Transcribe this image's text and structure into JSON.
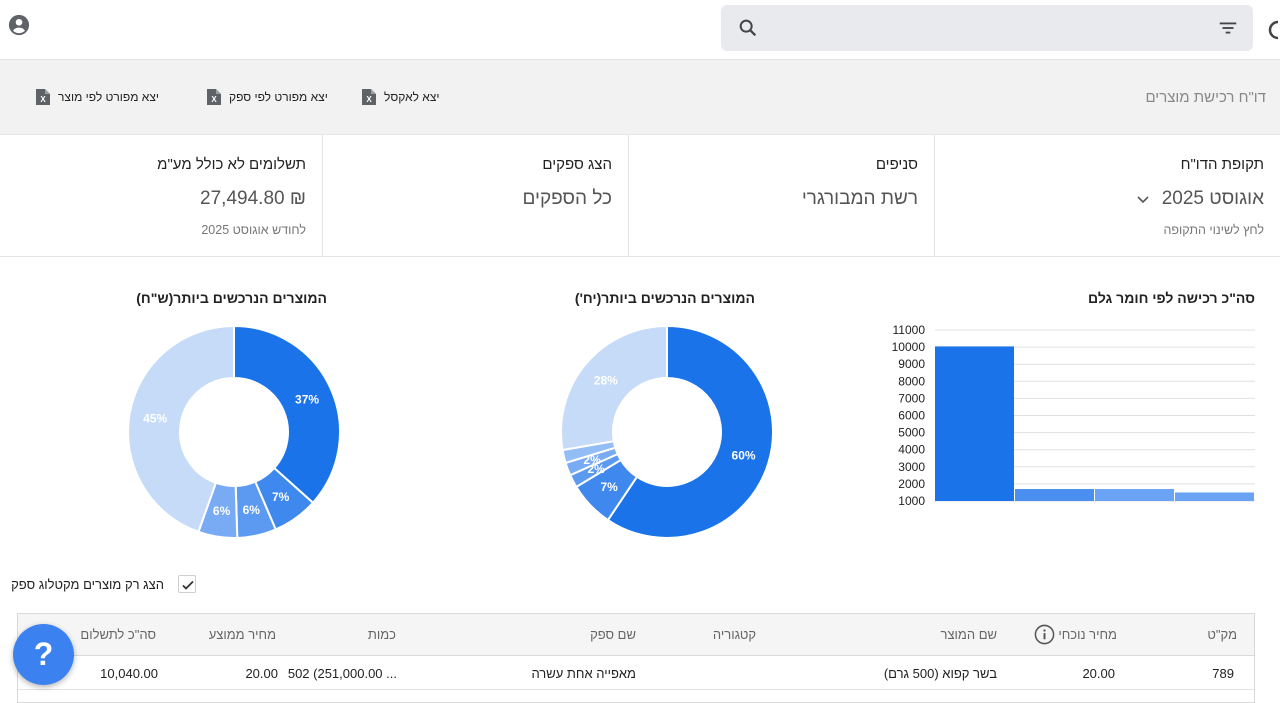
{
  "search": {
    "placeholder": ""
  },
  "toolbar": {
    "title": "דו\"ח רכישת מוצרים",
    "export_excel": "יצא לאקסל",
    "export_by_supplier": "יצא מפורט לפי ספק",
    "export_by_product": "יצא מפורט לפי מוצר"
  },
  "summary": {
    "period": {
      "label": "תקופת הדו\"ח",
      "value": "אוגוסט 2025",
      "sub": "לחץ לשינוי התקופה"
    },
    "branches": {
      "label": "סניפים",
      "value": "רשת המבורגרי"
    },
    "suppliers": {
      "label": "הצג ספקים",
      "value": "כל הספקים"
    },
    "payments": {
      "label": "תשלומים לא כולל מע\"מ",
      "value": "₪ 27,494.80",
      "sub": "לחודש  אוגוסט 2025"
    }
  },
  "charts_titles": {
    "bar": "סה\"כ רכישה לפי חומר גלם",
    "donut_units": "המוצרים הנרכשים ביותר(יח')",
    "donut_money": "המוצרים הנרכשים ביותר(ש\"ח)"
  },
  "chart_data": [
    {
      "type": "bar",
      "title": "סה\"כ רכישה לפי חומר גלם",
      "categories": [
        "",
        "",
        "",
        ""
      ],
      "values": [
        10040,
        1700,
        1700,
        1500
      ],
      "colors": [
        "#1a73e8",
        "#4a8ff0",
        "#6aa3f3",
        "#6aa3f3"
      ],
      "ylim": [
        1000,
        11000
      ],
      "yticks": [
        1000,
        2000,
        3000,
        4000,
        5000,
        6000,
        7000,
        8000,
        9000,
        10000,
        11000
      ],
      "grid": true
    },
    {
      "type": "pie",
      "title": "המוצרים הנרכשים ביותר(יח')",
      "values": [
        60,
        7,
        2,
        2,
        2,
        28
      ],
      "labels": [
        "60%",
        "7%",
        "2%",
        "2%",
        "",
        "28%"
      ],
      "colors": [
        "#1a73e8",
        "#3f88ee",
        "#5c9af1",
        "#78abf3",
        "#93bdf5",
        "#c6dbf8"
      ]
    },
    {
      "type": "pie",
      "title": "המוצרים הנרכשים ביותר(ש\"ח)",
      "values": [
        37,
        7,
        6,
        6,
        45
      ],
      "labels": [
        "37%",
        "7%",
        "6%",
        "6%",
        "45%"
      ],
      "colors": [
        "#1a73e8",
        "#3f88ee",
        "#5c9af1",
        "#78abf3",
        "#c6dbf8"
      ]
    }
  ],
  "filter": {
    "only_catalog_label": "הצג רק מוצרים מקטלוג ספק",
    "checked": true
  },
  "table": {
    "headers": {
      "sku": "מק\"ט",
      "current_price": "מחיר נוכחי",
      "product_name": "שם המוצר",
      "category": "קטגוריה",
      "supplier": "שם ספק",
      "quantity": "כמות",
      "avg_price": "מחיר ממוצע",
      "total": "סה\"כ לתשלום"
    },
    "rows": [
      {
        "sku": "789",
        "current_price": "20.00",
        "product_name": "בשר קפוא (500 גרם)",
        "category": "",
        "supplier": "מאפייה אחת עשרה",
        "quantity": "502 (251,000.00 ...",
        "avg_price": "20.00",
        "total": "10,040.00"
      }
    ]
  },
  "help": {
    "label": "?"
  }
}
